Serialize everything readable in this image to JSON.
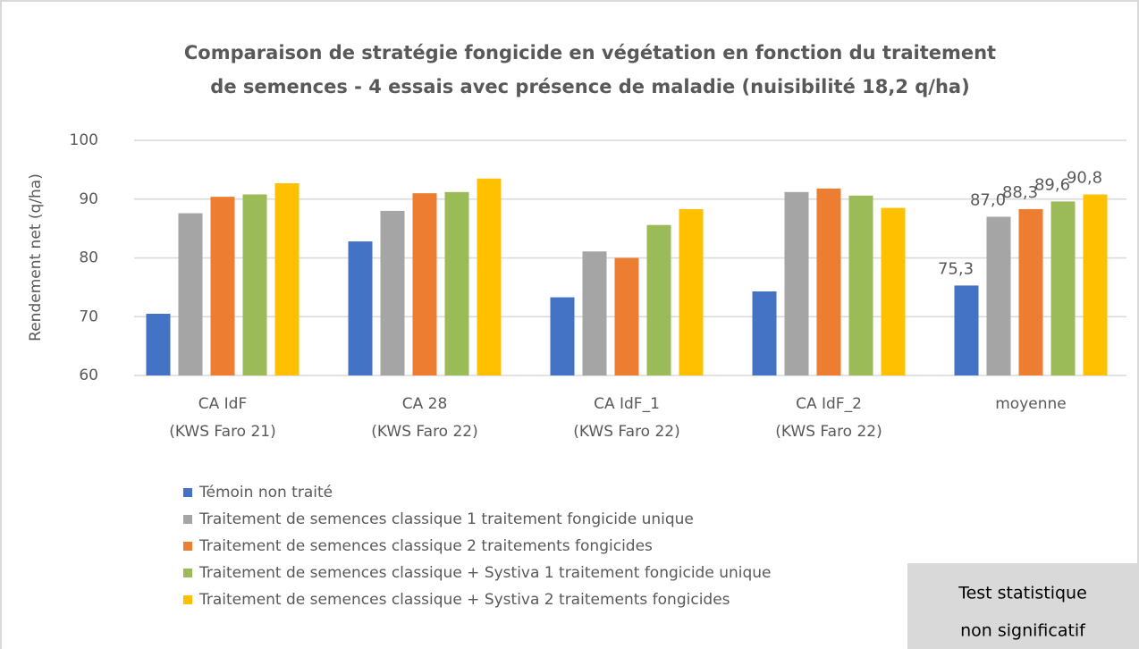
{
  "chart_data": {
    "type": "bar",
    "title": [
      "Comparaison de stratégie fongicide en végétation en fonction du traitement",
      "de semences - 4 essais avec présence de maladie (nuisibilité 18,2 q/ha)"
    ],
    "y_label": "Rendement net (q/ha)",
    "categories": [
      [
        "CA IdF",
        "(KWS Faro 21)"
      ],
      [
        "CA 28",
        "(KWS Faro 22)"
      ],
      [
        "CA IdF_1",
        "(KWS Faro 22)"
      ],
      [
        "CA IdF_2",
        "(KWS Faro 22)"
      ],
      [
        "moyenne"
      ]
    ],
    "series": [
      {
        "name": "Témoin non traité",
        "color": "#4472c4",
        "values": [
          70.5,
          82.8,
          73.3,
          74.3,
          75.3
        ],
        "value_labels": [
          null,
          null,
          null,
          null,
          "75,3"
        ]
      },
      {
        "name": "Traitement de semences classique 1 traitement fongicide unique",
        "color": "#a5a5a5",
        "values": [
          87.6,
          88.0,
          81.1,
          91.2,
          87.0
        ],
        "value_labels": [
          null,
          null,
          null,
          null,
          "87,0"
        ]
      },
      {
        "name": "Traitement de semences classique 2 traitements fongicides",
        "color": "#ed7d31",
        "values": [
          90.4,
          91.0,
          80.0,
          91.8,
          88.3
        ],
        "value_labels": [
          null,
          null,
          null,
          null,
          "88,3"
        ]
      },
      {
        "name": "Traitement de semences classique + Systiva 1 traitement fongicide unique",
        "color": "#9bbb59",
        "values": [
          90.8,
          91.2,
          85.6,
          90.6,
          89.6
        ],
        "value_labels": [
          null,
          null,
          null,
          null,
          "89,6"
        ]
      },
      {
        "name": "Traitement de semences classique + Systiva 2 traitements fongicides",
        "color": "#ffc000",
        "values": [
          92.7,
          93.5,
          88.3,
          88.5,
          90.8
        ],
        "value_labels": [
          null,
          null,
          null,
          null,
          "90,8"
        ]
      }
    ],
    "ylim": [
      60,
      100
    ],
    "yticks": [
      60,
      70,
      80,
      90,
      100
    ],
    "grid": true,
    "legend": "bottom-left",
    "annotation": [
      "Test statistique",
      "non significatif"
    ]
  }
}
